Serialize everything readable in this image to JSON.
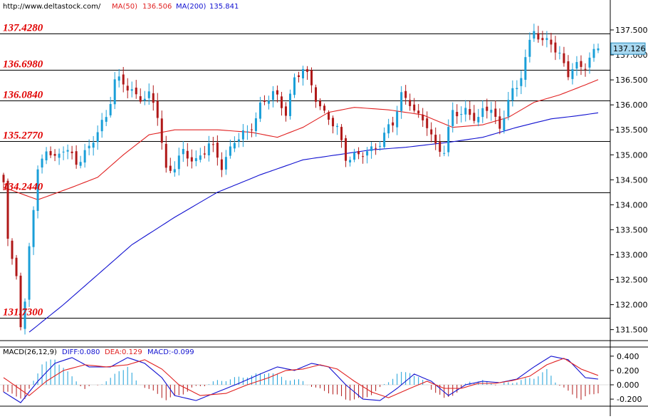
{
  "header": {
    "site": "http://www.deltastock.com/",
    "ma50_label": "MA(50)",
    "ma50_value": "136.506",
    "ma200_label": "MA(200)",
    "ma200_value": "135.841"
  },
  "macd_header": {
    "label": "MACD(26,12,9)",
    "diff": "DIFF:0.080",
    "dea": "DEA:0.129",
    "macd": "MACD:-0.099"
  },
  "colors": {
    "up": "#1a9fd8",
    "down": "#b01818",
    "ma50": "#e02020",
    "ma200": "#1010d0",
    "level_text": "#e00000",
    "price_box": "#a8d8f0"
  },
  "chart_data": [
    {
      "type": "candlestick",
      "title": "",
      "ylim": [
        131.35,
        137.95
      ],
      "y_ticks": [
        "137.500",
        "137.000",
        "136.500",
        "136.000",
        "135.500",
        "135.000",
        "134.500",
        "134.000",
        "133.500",
        "133.000",
        "132.500",
        "132.000",
        "131.500"
      ],
      "current_price": "137.126",
      "levels": [
        "137.4280",
        "136.6980",
        "136.0840",
        "135.2770",
        "134.2440",
        "131.7300"
      ],
      "candle_count": 140,
      "price_anchors": [
        [
          0,
          134.4
        ],
        [
          1,
          133.2
        ],
        [
          3,
          132.7
        ],
        [
          4,
          131.55
        ],
        [
          5,
          132.0
        ],
        [
          6,
          133.2
        ],
        [
          8,
          134.6
        ],
        [
          10,
          135.2
        ],
        [
          12,
          134.9
        ],
        [
          14,
          135.1
        ],
        [
          17,
          134.9
        ],
        [
          20,
          135.1
        ],
        [
          24,
          135.8
        ],
        [
          26,
          136.5
        ],
        [
          28,
          136.4
        ],
        [
          31,
          136.2
        ],
        [
          34,
          136.15
        ],
        [
          36,
          135.8
        ],
        [
          38,
          134.7
        ],
        [
          40,
          134.8
        ],
        [
          42,
          135.0
        ],
        [
          45,
          134.9
        ],
        [
          48,
          135.2
        ],
        [
          51,
          134.8
        ],
        [
          54,
          135.3
        ],
        [
          57,
          135.4
        ],
        [
          60,
          136.0
        ],
        [
          63,
          136.2
        ],
        [
          66,
          135.9
        ],
        [
          68,
          136.5
        ],
        [
          70,
          136.7
        ],
        [
          72,
          136.4
        ],
        [
          75,
          135.8
        ],
        [
          78,
          135.5
        ],
        [
          80,
          135.0
        ],
        [
          83,
          134.95
        ],
        [
          86,
          135.1
        ],
        [
          88,
          135.3
        ],
        [
          91,
          135.6
        ],
        [
          93,
          136.2
        ],
        [
          95,
          136.1
        ],
        [
          97,
          135.7
        ],
        [
          99,
          135.6
        ],
        [
          101,
          135.2
        ],
        [
          103,
          135.1
        ],
        [
          105,
          135.8
        ],
        [
          108,
          135.9
        ],
        [
          111,
          135.7
        ],
        [
          114,
          136.0
        ],
        [
          116,
          135.5
        ],
        [
          118,
          136.1
        ],
        [
          120,
          136.3
        ],
        [
          122,
          137.0
        ],
        [
          124,
          137.5
        ],
        [
          126,
          137.2
        ],
        [
          128,
          137.3
        ],
        [
          130,
          137.0
        ],
        [
          132,
          136.6
        ],
        [
          134,
          136.75
        ],
        [
          136,
          136.85
        ],
        [
          139,
          137.13
        ]
      ],
      "ma50_values": [
        [
          0,
          134.35
        ],
        [
          8,
          134.1
        ],
        [
          16,
          134.35
        ],
        [
          22,
          134.55
        ],
        [
          28,
          135.0
        ],
        [
          34,
          135.4
        ],
        [
          40,
          135.5
        ],
        [
          50,
          135.5
        ],
        [
          58,
          135.45
        ],
        [
          64,
          135.35
        ],
        [
          70,
          135.55
        ],
        [
          76,
          135.85
        ],
        [
          82,
          135.95
        ],
        [
          90,
          135.9
        ],
        [
          98,
          135.8
        ],
        [
          105,
          135.55
        ],
        [
          112,
          135.6
        ],
        [
          118,
          135.75
        ],
        [
          124,
          136.05
        ],
        [
          130,
          136.2
        ],
        [
          136,
          136.4
        ],
        [
          139,
          136.506
        ]
      ],
      "ma200_values": [
        [
          6,
          131.45
        ],
        [
          14,
          132.0
        ],
        [
          22,
          132.6
        ],
        [
          30,
          133.2
        ],
        [
          40,
          133.75
        ],
        [
          50,
          134.25
        ],
        [
          60,
          134.6
        ],
        [
          70,
          134.9
        ],
        [
          78,
          135.0
        ],
        [
          86,
          135.1
        ],
        [
          94,
          135.15
        ],
        [
          104,
          135.25
        ],
        [
          112,
          135.35
        ],
        [
          120,
          135.55
        ],
        [
          128,
          135.72
        ],
        [
          134,
          135.78
        ],
        [
          139,
          135.841
        ]
      ]
    },
    {
      "type": "macd",
      "params": "26,12,9",
      "ylim": [
        -0.3,
        0.5
      ],
      "y_ticks": [
        "0.400",
        "0.200",
        "0.000",
        "-0.200"
      ],
      "diff_values": [
        [
          0,
          -0.1
        ],
        [
          4,
          -0.25
        ],
        [
          8,
          0.05
        ],
        [
          12,
          0.3
        ],
        [
          16,
          0.38
        ],
        [
          20,
          0.25
        ],
        [
          25,
          0.25
        ],
        [
          29,
          0.38
        ],
        [
          33,
          0.3
        ],
        [
          37,
          0.1
        ],
        [
          40,
          -0.15
        ],
        [
          45,
          -0.22
        ],
        [
          50,
          -0.1
        ],
        [
          55,
          0.02
        ],
        [
          60,
          0.15
        ],
        [
          64,
          0.25
        ],
        [
          68,
          0.2
        ],
        [
          72,
          0.3
        ],
        [
          76,
          0.25
        ],
        [
          80,
          0.0
        ],
        [
          84,
          -0.2
        ],
        [
          88,
          -0.22
        ],
        [
          92,
          -0.05
        ],
        [
          96,
          0.15
        ],
        [
          100,
          0.05
        ],
        [
          104,
          -0.15
        ],
        [
          108,
          0.0
        ],
        [
          112,
          0.05
        ],
        [
          116,
          0.03
        ],
        [
          120,
          0.08
        ],
        [
          124,
          0.25
        ],
        [
          128,
          0.4
        ],
        [
          132,
          0.35
        ],
        [
          136,
          0.1
        ],
        [
          139,
          0.08
        ]
      ],
      "dea_values": [
        [
          0,
          0.1
        ],
        [
          6,
          -0.15
        ],
        [
          10,
          0.05
        ],
        [
          14,
          0.2
        ],
        [
          19,
          0.28
        ],
        [
          24,
          0.25
        ],
        [
          29,
          0.28
        ],
        [
          33,
          0.35
        ],
        [
          37,
          0.22
        ],
        [
          41,
          0.0
        ],
        [
          46,
          -0.15
        ],
        [
          52,
          -0.12
        ],
        [
          57,
          0.0
        ],
        [
          62,
          0.1
        ],
        [
          66,
          0.2
        ],
        [
          70,
          0.22
        ],
        [
          74,
          0.28
        ],
        [
          78,
          0.22
        ],
        [
          82,
          0.05
        ],
        [
          86,
          -0.1
        ],
        [
          90,
          -0.18
        ],
        [
          95,
          -0.05
        ],
        [
          99,
          0.05
        ],
        [
          103,
          -0.05
        ],
        [
          107,
          -0.05
        ],
        [
          111,
          0.02
        ],
        [
          115,
          0.02
        ],
        [
          119,
          0.06
        ],
        [
          123,
          0.12
        ],
        [
          127,
          0.28
        ],
        [
          131,
          0.37
        ],
        [
          135,
          0.22
        ],
        [
          139,
          0.13
        ]
      ],
      "hist_values": [
        [
          0,
          -0.1
        ],
        [
          3,
          -0.15
        ],
        [
          5,
          -0.2
        ],
        [
          7,
          0.05
        ],
        [
          9,
          0.3
        ],
        [
          12,
          0.35
        ],
        [
          14,
          0.25
        ],
        [
          16,
          0.1
        ],
        [
          19,
          -0.05
        ],
        [
          22,
          0.0
        ],
        [
          25,
          0.08
        ],
        [
          27,
          0.2
        ],
        [
          29,
          0.25
        ],
        [
          31,
          0.05
        ],
        [
          35,
          -0.1
        ],
        [
          38,
          -0.2
        ],
        [
          41,
          -0.15
        ],
        [
          44,
          -0.05
        ],
        [
          47,
          0.0
        ],
        [
          50,
          0.05
        ],
        [
          55,
          0.1
        ],
        [
          60,
          0.15
        ],
        [
          62,
          0.18
        ],
        [
          66,
          0.08
        ],
        [
          70,
          0.05
        ],
        [
          73,
          -0.05
        ],
        [
          76,
          -0.1
        ],
        [
          80,
          -0.2
        ],
        [
          84,
          -0.2
        ],
        [
          88,
          -0.05
        ],
        [
          92,
          0.15
        ],
        [
          95,
          0.18
        ],
        [
          97,
          0.1
        ],
        [
          100,
          -0.05
        ],
        [
          103,
          -0.2
        ],
        [
          106,
          -0.1
        ],
        [
          109,
          0.05
        ],
        [
          112,
          0.05
        ],
        [
          116,
          0.0
        ],
        [
          120,
          0.05
        ],
        [
          124,
          0.1
        ],
        [
          127,
          0.2
        ],
        [
          129,
          0.05
        ],
        [
          132,
          -0.1
        ],
        [
          135,
          -0.2
        ],
        [
          139,
          -0.1
        ]
      ]
    }
  ]
}
